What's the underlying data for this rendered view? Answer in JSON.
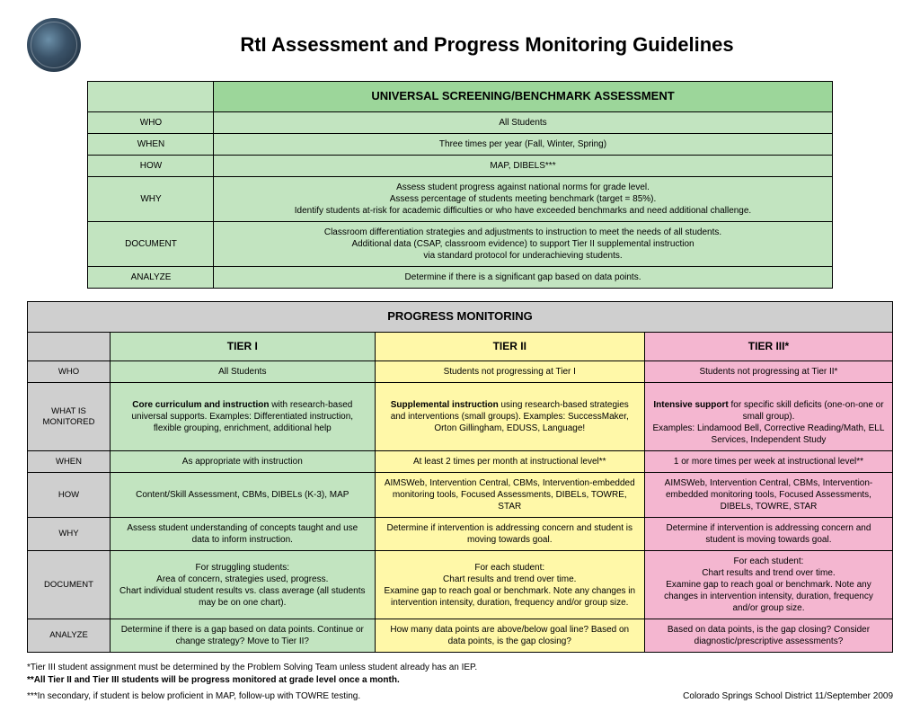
{
  "page": {
    "title": "RtI Assessment and Progress Monitoring Guidelines",
    "footer_org": "Colorado Springs School District 11/September 2009"
  },
  "colors": {
    "green_header": "#9cd69a",
    "green_cell": "#c2e4c0",
    "grey": "#cfcfcf",
    "yellow": "#fff8a8",
    "pink": "#f4b6d0",
    "border": "#000000"
  },
  "screening": {
    "header": "UNIVERSAL SCREENING/BENCHMARK ASSESSMENT",
    "rows": {
      "who": {
        "label": "WHO",
        "value": "All Students"
      },
      "when": {
        "label": "WHEN",
        "value": "Three times per year (Fall, Winter, Spring)"
      },
      "how": {
        "label": "HOW",
        "value": "MAP, DIBELS***"
      },
      "why": {
        "label": "WHY",
        "value": "Assess student progress against national norms for grade level.\nAssess percentage of students meeting benchmark (target = 85%).\nIdentify students at-risk for academic difficulties or who have exceeded benchmarks and need additional challenge."
      },
      "document": {
        "label": "DOCUMENT",
        "value": "Classroom differentiation strategies and adjustments to instruction to meet the needs of all students.\nAdditional data (CSAP, classroom evidence) to support Tier II supplemental instruction\nvia standard protocol for underachieving students."
      },
      "analyze": {
        "label": "ANALYZE",
        "value": "Determine if there is a significant gap based on data points."
      }
    }
  },
  "progress": {
    "header": "PROGRESS MONITORING",
    "tier_headers": {
      "t1": "TIER I",
      "t2": "TIER II",
      "t3": "TIER III*"
    },
    "rows": {
      "who": {
        "label": "WHO",
        "t1": "All Students",
        "t2": "Students not progressing at Tier I",
        "t3": "Students not progressing at Tier II*"
      },
      "monitored": {
        "label": "WHAT IS MONITORED",
        "t1_lead": "Core curriculum and instruction",
        "t1_rest": " with research-based universal supports.  Examples:  Differentiated instruction, flexible grouping, enrichment, additional help",
        "t2_lead": "Supplemental instruction",
        "t2_rest": " using research-based strategies and interventions (small groups).  Examples:  SuccessMaker, Orton Gillingham, EDUSS, Language!",
        "t3_lead": "Intensive support",
        "t3_rest": " for specific skill deficits (one-on-one or small group).\nExamples: Lindamood Bell, Corrective Reading/Math,  ELL Services, Independent Study"
      },
      "when": {
        "label": "WHEN",
        "t1": "As appropriate with instruction",
        "t2": "At least 2 times per month at instructional level**",
        "t3": "1 or more times per week at instructional level**"
      },
      "how": {
        "label": "HOW",
        "t1": "Content/Skill Assessment, CBMs, DIBELs (K-3), MAP",
        "t2": "AIMSWeb, Intervention Central, CBMs, Intervention-embedded monitoring tools, Focused Assessments, DIBELs, TOWRE, STAR",
        "t3": "AIMSWeb, Intervention Central, CBMs, Intervention-embedded monitoring tools, Focused Assessments, DIBELs, TOWRE, STAR"
      },
      "why": {
        "label": "WHY",
        "t1": "Assess student understanding of concepts taught and use data to inform instruction.",
        "t2": "Determine if intervention is addressing concern and student is moving towards goal.",
        "t3": "Determine if intervention is addressing concern and student is moving towards goal."
      },
      "document": {
        "label": "DOCUMENT",
        "t1": "For struggling students:\nArea of concern, strategies used, progress.\nChart individual student results vs. class average (all students may be on one chart).",
        "t2": "For each student:\nChart results and trend over time.\nExamine gap to reach goal or benchmark. Note any changes in intervention intensity, duration, frequency and/or group size.",
        "t3": "For each student:\nChart results and trend over time.\nExamine gap to reach goal or benchmark. Note any changes in intervention intensity, duration, frequency and/or group size."
      },
      "analyze": {
        "label": "ANALYZE",
        "t1": "Determine if there is a gap based on data points.  Continue or change strategy?  Move to Tier II?",
        "t2": "How many data points are above/below goal line?  Based on data points, is the gap closing?",
        "t3": "Based on data points, is the gap closing?  Consider diagnostic/prescriptive assessments?"
      }
    }
  },
  "footnotes": {
    "n1": "*Tier III student assignment must be determined by the Problem Solving Team unless student already has an IEP.",
    "n2": "**All Tier II and Tier III students will be progress monitored at grade level once a month.",
    "n3": "***In secondary, if student is below proficient in MAP, follow-up with TOWRE testing."
  }
}
